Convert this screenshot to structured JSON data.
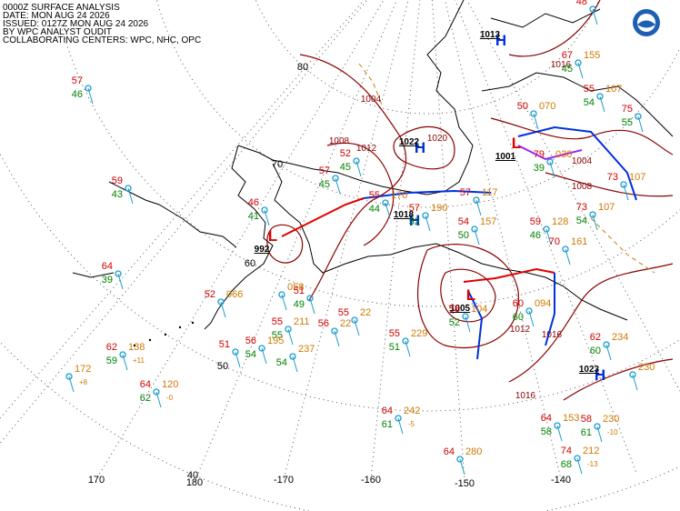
{
  "header": {
    "lines": [
      "0000Z SURFACE ANALYSIS",
      "DATE: MON AUG 24 2026",
      "ISSUED: 0127Z MON AUG 24 2026",
      "BY WPC ANALYST OUDIT",
      "COLLABORATING CENTERS: WPC, NHC, OPC"
    ]
  },
  "grid_labels": {
    "lat": [
      "80",
      "70",
      "60",
      "50",
      "40"
    ],
    "lon": [
      "170",
      "180",
      "-170",
      "-160",
      "-150",
      "-140"
    ]
  },
  "pressure_centers": [
    {
      "letter": "L",
      "value": "992"
    },
    {
      "letter": "L",
      "value": "1005"
    },
    {
      "letter": "H",
      "value": "1022"
    },
    {
      "letter": "H",
      "value": "1018"
    },
    {
      "letter": "H",
      "value": "1023"
    },
    {
      "letter": "H",
      "value": "1013"
    },
    {
      "letter": "L",
      "value": "1001"
    }
  ],
  "isobar_labels": [
    "1004",
    "1008",
    "1012",
    "1016",
    "1008",
    "1004",
    "1016",
    "1016",
    "1012",
    "1020"
  ],
  "stations": [
    {
      "t": "57",
      "td": "46"
    },
    {
      "t": "59",
      "td": "43"
    },
    {
      "t": "64",
      "td": "39"
    },
    {
      "t": "52",
      "p": "066"
    },
    {
      "t": "62",
      "p": "138",
      "td": "59",
      "c": "+11"
    },
    {
      "p": "172",
      "c": "+8"
    },
    {
      "t": "64",
      "p": "120",
      "td": "62",
      "c": "-0"
    },
    {
      "t": "46",
      "td": "41"
    },
    {
      "p": "058"
    },
    {
      "t": "51",
      "td": "49"
    },
    {
      "t": "55",
      "p": "211",
      "td": "55"
    },
    {
      "t": "56",
      "p": "195",
      "td": "54"
    },
    {
      "t": "51"
    },
    {
      "p": "237",
      "td": "54"
    },
    {
      "t": "56",
      "p": "22"
    },
    {
      "t": "55",
      "p": "22"
    },
    {
      "t": "55",
      "p": "229",
      "td": "51"
    },
    {
      "t": "64",
      "p": "242",
      "td": "61",
      "c": "-5"
    },
    {
      "t": "64",
      "p": "280"
    },
    {
      "t": "64",
      "p": "153",
      "td": "58"
    },
    {
      "t": "58",
      "p": "230",
      "td": "61",
      "c": "-10"
    },
    {
      "t": "74",
      "p": "212",
      "td": "68",
      "c": "-13"
    },
    {
      "t": "62",
      "p": "234",
      "td": "60"
    },
    {
      "p": "230"
    },
    {
      "t": "60",
      "p": "094",
      "td": "60"
    },
    {
      "t": "58",
      "p": "104",
      "td": "52"
    },
    {
      "t": "57",
      "p": "190",
      "td": "52"
    },
    {
      "t": "54",
      "p": "157",
      "td": "50"
    },
    {
      "t": "59",
      "p": "128",
      "td": "46"
    },
    {
      "t": "70",
      "p": "161"
    },
    {
      "t": "73",
      "p": "107",
      "td": "54"
    },
    {
      "t": "73",
      "p": "107"
    },
    {
      "t": "55",
      "p": "107",
      "td": "54"
    },
    {
      "t": "55",
      "p": "170",
      "td": "44"
    },
    {
      "t": "52",
      "td": "45"
    },
    {
      "t": "57",
      "td": "45"
    },
    {
      "t": "75",
      "td": "55"
    },
    {
      "t": "79",
      "p": "030",
      "td": "39"
    },
    {
      "t": "50",
      "p": "070"
    },
    {
      "t": "57",
      "p": "117"
    },
    {
      "t": "48"
    },
    {
      "t": "67",
      "p": "155",
      "td": "45"
    }
  ]
}
